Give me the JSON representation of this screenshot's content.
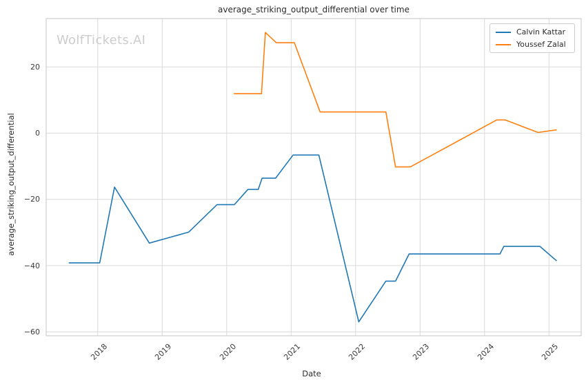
{
  "title": "average_striking_output_differential over time",
  "watermark": "WolfTickets.AI",
  "axes": {
    "xlabel": "Date",
    "ylabel": "average_striking_output_differential",
    "x_ticks": [
      {
        "v": 2018,
        "label": "2018"
      },
      {
        "v": 2019,
        "label": "2019"
      },
      {
        "v": 2020,
        "label": "2020"
      },
      {
        "v": 2021,
        "label": "2021"
      },
      {
        "v": 2022,
        "label": "2022"
      },
      {
        "v": 2023,
        "label": "2023"
      },
      {
        "v": 2024,
        "label": "2024"
      },
      {
        "v": 2025,
        "label": "2025"
      }
    ],
    "y_ticks": [
      {
        "v": 20,
        "label": "20"
      },
      {
        "v": 0,
        "label": "0"
      },
      {
        "v": -20,
        "label": "−20"
      },
      {
        "v": -40,
        "label": "−40"
      },
      {
        "v": -60,
        "label": "−60"
      }
    ]
  },
  "colors": {
    "grid": "#d9d9d9",
    "spine": "#c6c6c6",
    "text": "#2b2b2b",
    "watermark": "#cccccc",
    "series_blue": "#1f77b4",
    "series_orange": "#ff7f0e"
  },
  "chart_data": {
    "type": "line",
    "title": "average_striking_output_differential over time",
    "xlabel": "Date",
    "ylabel": "average_striking_output_differential",
    "xlim": [
      2017.2,
      2025.5
    ],
    "ylim": [
      -61.2,
      34.6
    ],
    "grid": true,
    "legend_position": "upper right",
    "x_unit": "decimal_year",
    "series": [
      {
        "name": "Calvin Kattar",
        "color": "#1f77b4",
        "points": [
          [
            2017.55,
            -39.2
          ],
          [
            2018.03,
            -39.2
          ],
          [
            2018.26,
            -16.3
          ],
          [
            2018.8,
            -33.2
          ],
          [
            2019.41,
            -29.9
          ],
          [
            2019.85,
            -21.6
          ],
          [
            2020.12,
            -21.6
          ],
          [
            2020.33,
            -17.0
          ],
          [
            2020.49,
            -17.0
          ],
          [
            2020.55,
            -13.6
          ],
          [
            2020.76,
            -13.6
          ],
          [
            2021.03,
            -6.6
          ],
          [
            2021.43,
            -6.6
          ],
          [
            2022.05,
            -57.0
          ],
          [
            2022.47,
            -44.7
          ],
          [
            2022.62,
            -44.7
          ],
          [
            2022.83,
            -36.5
          ],
          [
            2024.24,
            -36.5
          ],
          [
            2024.3,
            -34.2
          ],
          [
            2024.86,
            -34.2
          ],
          [
            2025.12,
            -38.6
          ]
        ]
      },
      {
        "name": "Youssef Zalal",
        "color": "#ff7f0e",
        "points": [
          [
            2020.11,
            11.9
          ],
          [
            2020.54,
            11.9
          ],
          [
            2020.6,
            30.4
          ],
          [
            2020.77,
            27.3
          ],
          [
            2021.05,
            27.3
          ],
          [
            2021.45,
            6.4
          ],
          [
            2022.47,
            6.4
          ],
          [
            2022.62,
            -10.2
          ],
          [
            2022.85,
            -10.2
          ],
          [
            2024.19,
            4.0
          ],
          [
            2024.32,
            4.0
          ],
          [
            2024.83,
            0.2
          ],
          [
            2025.12,
            1.0
          ]
        ]
      }
    ]
  }
}
